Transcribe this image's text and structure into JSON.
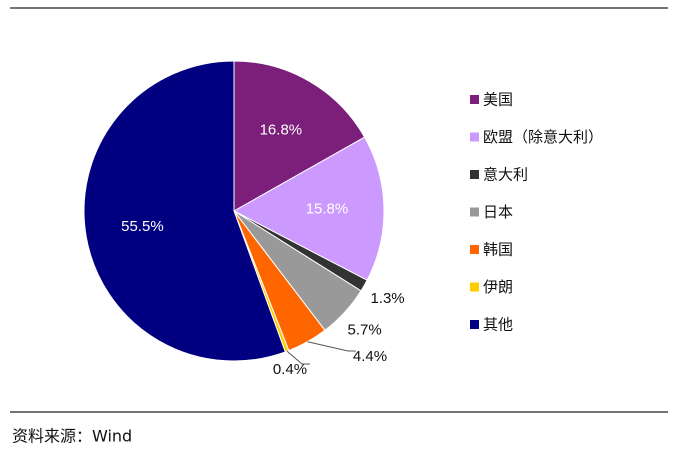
{
  "chart_data": {
    "type": "pie",
    "categories": [
      "美国",
      "欧盟（除意大利）",
      "意大利",
      "日本",
      "韩国",
      "伊朗",
      "其他"
    ],
    "values": [
      16.8,
      15.8,
      1.3,
      5.7,
      4.4,
      0.4,
      55.5
    ],
    "value_labels": [
      "16.8%",
      "15.8%",
      "1.3%",
      "5.7%",
      "4.4%",
      "0.4%",
      "55.5%"
    ],
    "colors": [
      "#7b1f7a",
      "#cc99ff",
      "#333333",
      "#999999",
      "#ff6600",
      "#ffcc00",
      "#000080"
    ],
    "legend": "right"
  },
  "source": "资料来源：Wind"
}
